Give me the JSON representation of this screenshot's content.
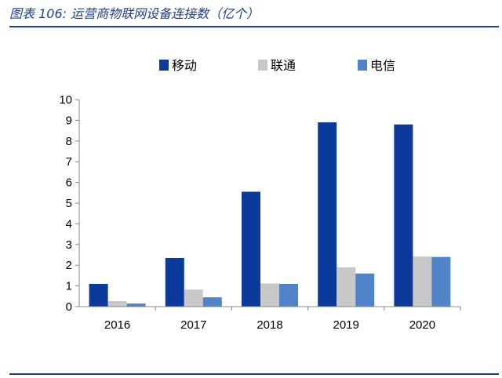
{
  "figure": {
    "title": "图表 106: 运营商物联网设备连接数（亿个）"
  },
  "colors": {
    "series": [
      "#0b3a9a",
      "#c8c8c8",
      "#4f84c8"
    ],
    "rule": "#1f3f8f"
  },
  "chart_data": {
    "type": "bar",
    "title": "",
    "xlabel": "",
    "ylabel": "",
    "categories": [
      "2016",
      "2017",
      "2018",
      "2019",
      "2020"
    ],
    "series": [
      {
        "name": "移动",
        "values": [
          1.1,
          2.35,
          5.55,
          8.9,
          8.8
        ]
      },
      {
        "name": "联通",
        "values": [
          0.27,
          0.82,
          1.12,
          1.9,
          2.42
        ]
      },
      {
        "name": "电信",
        "values": [
          0.15,
          0.45,
          1.1,
          1.6,
          2.4
        ]
      }
    ],
    "ylim": [
      0,
      10
    ],
    "yticks": [
      "0",
      "1",
      "2",
      "3",
      "4",
      "5",
      "6",
      "7",
      "8",
      "9",
      "10"
    ],
    "grid": false,
    "legend": "top-center"
  }
}
